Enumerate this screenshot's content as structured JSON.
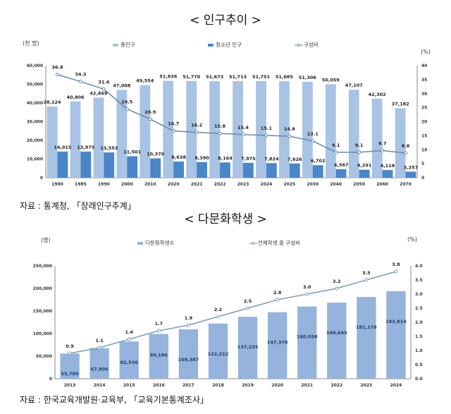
{
  "page": {
    "title1": "< 인구추이 >",
    "source1": "자료 : 통계청, 「장래인구추계」",
    "title2": "< 다문화학생 >",
    "source2": "자료 : 한국교육개발원·교육부, 「교육기본통계조사」"
  },
  "chart_data": [
    {
      "type": "bar",
      "ylabel": "(천 명)",
      "y2label": "(%)",
      "ylim": [
        0,
        60000
      ],
      "y2lim": [
        0,
        40
      ],
      "yticks": [
        "0",
        "10,000",
        "20,000",
        "30,000",
        "40,000",
        "50,000",
        "60,000"
      ],
      "y2ticks": [
        "0",
        "5",
        "10",
        "15",
        "20",
        "25",
        "30",
        "35",
        "40"
      ],
      "categories": [
        "1980",
        "1985",
        "1990",
        "2000",
        "2010",
        "2020",
        "2021",
        "2022",
        "2023",
        "2024",
        "2025",
        "2030",
        "2040",
        "2050",
        "2060",
        "2070"
      ],
      "legend_placement": "top",
      "series": [
        {
          "name": "총인구",
          "type": "bar",
          "color": "#a9c3e4",
          "values": [
            38124,
            40806,
            42869,
            47008,
            49554,
            51836,
            51770,
            51673,
            51713,
            51751,
            51685,
            51306,
            50059,
            47107,
            42302,
            37182
          ]
        },
        {
          "name": "청소년 인구",
          "type": "bar",
          "color": "#4a86c8",
          "values": [
            14015,
            13975,
            13553,
            11501,
            10370,
            8638,
            8390,
            8164,
            7975,
            7824,
            7626,
            6702,
            4567,
            4291,
            4118,
            3257
          ]
        },
        {
          "name": "구성비",
          "type": "line",
          "axis": "right",
          "color": "#6a87a8",
          "values": [
            36.8,
            34.3,
            31.6,
            24.5,
            20.9,
            16.7,
            16.2,
            15.8,
            15.4,
            15.1,
            14.8,
            13.1,
            9.1,
            9.1,
            9.7,
            8.8
          ]
        }
      ]
    },
    {
      "type": "bar",
      "ylabel": "(명)",
      "y2label": "(%)",
      "ylim": [
        0,
        250000
      ],
      "y2lim": [
        0,
        4.0
      ],
      "yticks": [
        "0",
        "50,000",
        "100,000",
        "150,000",
        "200,000",
        "250,000"
      ],
      "y2ticks": [
        "0.0",
        "0.5",
        "1.0",
        "1.5",
        "2.0",
        "2.5",
        "3.0",
        "3.5",
        "4.0"
      ],
      "categories": [
        "2013",
        "2014",
        "2015",
        "2016",
        "2017",
        "2018",
        "2019",
        "2020",
        "2021",
        "2022",
        "2023",
        "2024"
      ],
      "legend_placement": "top",
      "series": [
        {
          "name": "다문화학생수",
          "type": "bar",
          "color": "#95b3dc",
          "values": [
            55780,
            67806,
            82536,
            99186,
            109387,
            122212,
            137225,
            147378,
            160058,
            168645,
            181178,
            193814
          ]
        },
        {
          "name": "전체학생 중 구성비",
          "type": "line",
          "axis": "right",
          "color": "#7f9cb8",
          "values": [
            0.9,
            1.1,
            1.4,
            1.7,
            1.9,
            2.2,
            2.5,
            2.8,
            3.0,
            3.2,
            3.5,
            3.8
          ]
        }
      ]
    }
  ]
}
